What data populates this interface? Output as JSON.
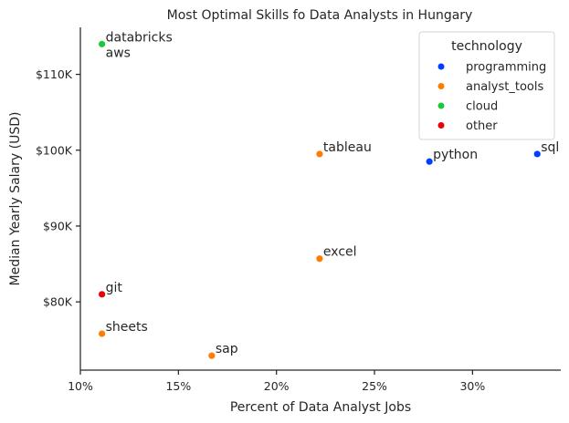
{
  "chart_data": {
    "type": "scatter",
    "title": "Most Optimal Skills fo Data Analysts in Hungary",
    "xlabel": "Percent of Data Analyst Jobs",
    "ylabel": "Median Yearly Salary (USD)",
    "xlim": [
      10,
      34.5
    ],
    "ylim": [
      71000,
      116200
    ],
    "x_ticks": [
      10,
      15,
      20,
      25,
      30
    ],
    "x_tick_labels": [
      "10%",
      "15%",
      "20%",
      "25%",
      "30%"
    ],
    "y_ticks": [
      80000,
      90000,
      100000,
      110000
    ],
    "y_tick_labels": [
      "$80K",
      "$90K",
      "$100K",
      "$110K"
    ],
    "legend": {
      "title": "technology",
      "placement": "top-right",
      "entries": [
        {
          "name": "programming",
          "color": "#023eff"
        },
        {
          "name": "analyst_tools",
          "color": "#ff7c00"
        },
        {
          "name": "cloud",
          "color": "#1ac938"
        },
        {
          "name": "other",
          "color": "#e8000b"
        }
      ]
    },
    "points": [
      {
        "label": "databricks",
        "x": 11.1,
        "y": 114000,
        "technology": "cloud"
      },
      {
        "label": "aws",
        "x": 11.1,
        "y": 114000,
        "technology": "cloud"
      },
      {
        "label": "tableau",
        "x": 22.2,
        "y": 99500,
        "technology": "analyst_tools"
      },
      {
        "label": "python",
        "x": 27.8,
        "y": 98500,
        "technology": "programming"
      },
      {
        "label": "sql",
        "x": 33.3,
        "y": 99500,
        "technology": "programming"
      },
      {
        "label": "excel",
        "x": 22.2,
        "y": 85700,
        "technology": "analyst_tools"
      },
      {
        "label": "git",
        "x": 11.1,
        "y": 81000,
        "technology": "other"
      },
      {
        "label": "sheets",
        "x": 11.1,
        "y": 75800,
        "technology": "analyst_tools"
      },
      {
        "label": "sap",
        "x": 16.7,
        "y": 72900,
        "technology": "analyst_tools"
      }
    ]
  }
}
